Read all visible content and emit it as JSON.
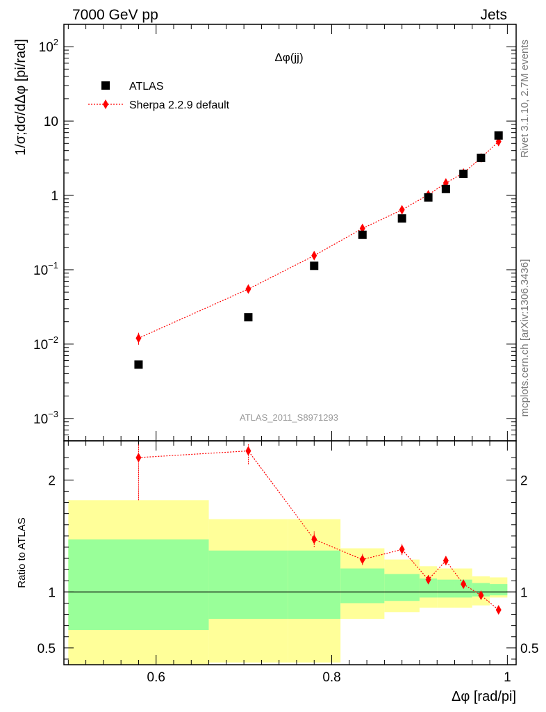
{
  "header": {
    "left_title": "7000 GeV pp",
    "right_title": "Jets"
  },
  "side_labels": {
    "rivet": "Rivet 3.1.10,  2.7M events",
    "mcplots": "mcplots.cern.ch [arXiv:1306.3436]"
  },
  "colors": {
    "data": "#000000",
    "mc": "#ff0000",
    "band_inner": "#99ff99",
    "band_outer": "#ffff99"
  },
  "chart_data": [
    {
      "type": "scatter",
      "title": "Δφ(jj)",
      "annotation": "ATLAS_2011_S8971293",
      "ylabel": "1/σ;dσ/dΔφ [pi/rad]",
      "yscale": "log",
      "ylim": [
        0.0005,
        200
      ],
      "xlim": [
        0.495,
        1.01
      ],
      "y_ticks": [
        {
          "value": 0.001,
          "label": "10^-3"
        },
        {
          "value": 0.01,
          "label": "10^-2"
        },
        {
          "value": 0.1,
          "label": "10^-1"
        },
        {
          "value": 1,
          "label": "1"
        },
        {
          "value": 10,
          "label": "10"
        },
        {
          "value": 100,
          "label": "10^2"
        }
      ],
      "legend_position": "top-left",
      "series": [
        {
          "name": "ATLAS",
          "marker": "square",
          "color": "#000000",
          "x": [
            0.58,
            0.705,
            0.78,
            0.835,
            0.88,
            0.91,
            0.93,
            0.95,
            0.97,
            0.99
          ],
          "y": [
            0.0053,
            0.023,
            0.113,
            0.295,
            0.49,
            0.94,
            1.22,
            1.95,
            3.2,
            6.4
          ]
        },
        {
          "name": "Sherpa 2.2.9 default",
          "marker": "diamond",
          "line": "dotted",
          "color": "#ff0000",
          "x": [
            0.58,
            0.705,
            0.78,
            0.835,
            0.88,
            0.91,
            0.93,
            0.95,
            0.97,
            0.99
          ],
          "y": [
            0.012,
            0.055,
            0.155,
            0.36,
            0.64,
            1.02,
            1.47,
            2.0,
            3.2,
            5.3
          ],
          "err_lo": [
            0.0022,
            0.003,
            0.01,
            0.025,
            0.04,
            0.05,
            0.06,
            0.08,
            0.1,
            0.15
          ],
          "err_hi": [
            0.0022,
            0.003,
            0.01,
            0.025,
            0.04,
            0.05,
            0.06,
            0.08,
            0.1,
            0.15
          ]
        }
      ]
    },
    {
      "type": "line",
      "ylabel": "Ratio to ATLAS",
      "xlabel": "Δφ [rad/pi]",
      "ylim": [
        0.35,
        2.35
      ],
      "xlim": [
        0.495,
        1.01
      ],
      "x_ticks": [
        0.6,
        0.8,
        1
      ],
      "x_tick_labels": [
        "0.6",
        "0.8",
        "1"
      ],
      "y_ticks": [
        0.5,
        1,
        2
      ],
      "y_tick_labels": [
        "0.5",
        "1",
        "2"
      ],
      "reference_line": 1,
      "bands": {
        "edges": [
          0.5,
          0.66,
          0.75,
          0.81,
          0.86,
          0.9,
          0.92,
          0.94,
          0.96,
          0.98,
          1.0
        ],
        "outer_lo": [
          0.0,
          0.37,
          0.37,
          0.76,
          0.82,
          0.86,
          0.86,
          0.86,
          0.88,
          0.95
        ],
        "outer_hi": [
          1.82,
          1.65,
          1.65,
          1.39,
          1.29,
          1.23,
          1.21,
          1.21,
          1.14,
          1.13
        ],
        "inner_lo": [
          0.66,
          0.76,
          0.76,
          0.9,
          0.92,
          0.95,
          0.95,
          0.95,
          0.96,
          0.97
        ],
        "inner_hi": [
          1.47,
          1.37,
          1.37,
          1.21,
          1.16,
          1.12,
          1.11,
          1.11,
          1.08,
          1.07
        ]
      },
      "series": [
        {
          "name": "Sherpa 2.2.9 default",
          "color": "#ff0000",
          "x": [
            0.58,
            0.705,
            0.78,
            0.835,
            0.88,
            0.91,
            0.93,
            0.95,
            0.97,
            0.99
          ],
          "y": [
            2.2,
            2.26,
            1.47,
            1.29,
            1.38,
            1.11,
            1.28,
            1.07,
            0.97,
            0.84
          ],
          "err_lo": [
            0.38,
            0.12,
            0.07,
            0.05,
            0.05,
            0.04,
            0.04,
            0.03,
            0.03,
            0.02
          ],
          "err_hi": [
            0.12,
            0.06,
            0.07,
            0.05,
            0.05,
            0.04,
            0.04,
            0.03,
            0.03,
            0.02
          ]
        }
      ]
    }
  ]
}
